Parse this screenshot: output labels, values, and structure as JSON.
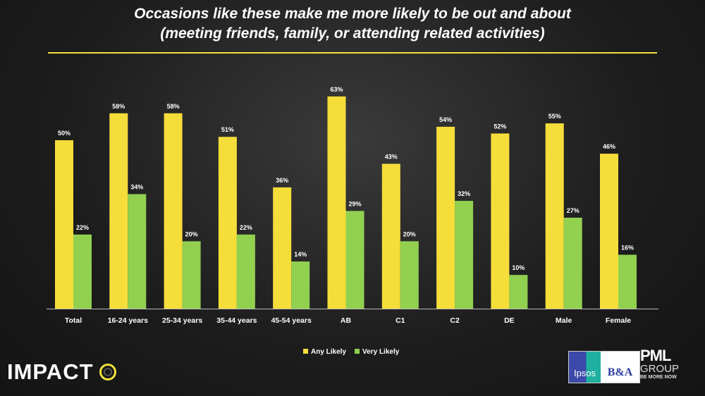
{
  "title_line1": "Occasions like these make me more likely to be out and about",
  "title_line2": "(meeting friends, family, or attending related activities)",
  "chart_data": {
    "type": "bar",
    "title": "Occasions like these make me more likely to be out and about (meeting friends, family, or attending related activities)",
    "categories": [
      "Total",
      "16-24 years",
      "25-34 years",
      "35-44 years",
      "45-54 years",
      "AB",
      "C1",
      "C2",
      "DE",
      "Male",
      "Female"
    ],
    "series": [
      {
        "name": "Any Likely",
        "color": "#f5dd3a",
        "values": [
          50,
          58,
          58,
          51,
          36,
          63,
          43,
          54,
          52,
          55,
          46
        ]
      },
      {
        "name": "Very Likely",
        "color": "#92d050",
        "values": [
          22,
          34,
          20,
          22,
          14,
          29,
          20,
          32,
          10,
          27,
          16
        ]
      }
    ],
    "value_suffix": "%",
    "ylim": [
      0,
      70
    ],
    "grid": false,
    "legend": "bottom-center",
    "xlabel": "",
    "ylabel": ""
  },
  "branding": {
    "impact": "IMPACT",
    "ipsos": "Ipsos",
    "ba": "B&A",
    "pml": "PML",
    "group": "GROUP",
    "tagline": "BE MORE NOW"
  }
}
